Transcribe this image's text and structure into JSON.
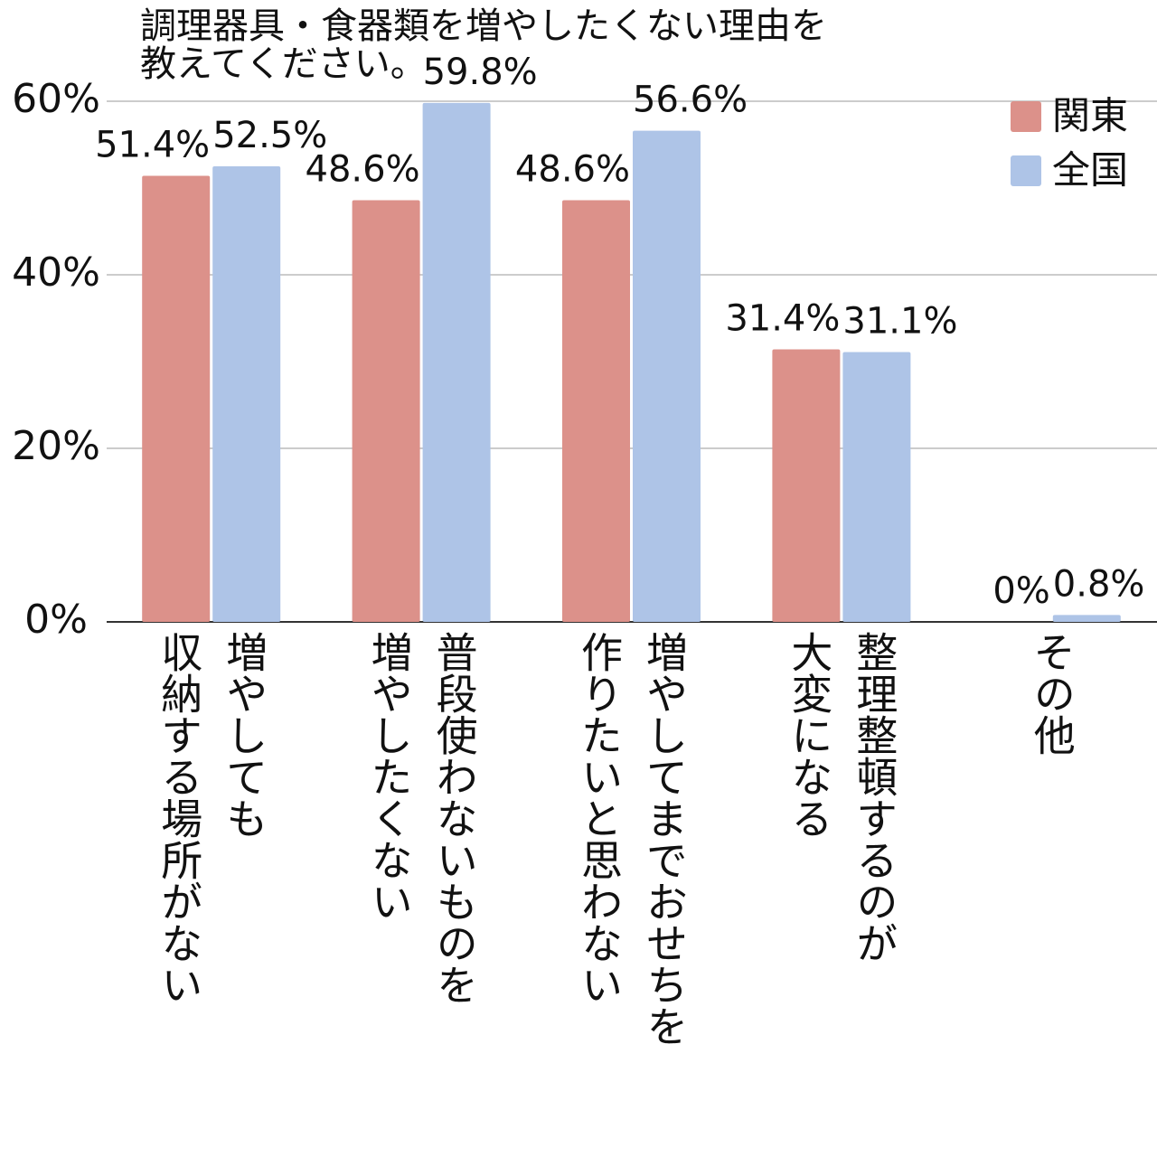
{
  "chart_data": {
    "type": "bar",
    "title": "調理器具・食器類を増やしたくない理由を\n教えてください。",
    "categories": [
      "増やしても\n収納する場所がない",
      "普段使わないものを\n増やしたくない",
      "増やしてまでおせちを\n作りたいと思わない",
      "整理整頓するのが\n大変になる",
      "その他"
    ],
    "series": [
      {
        "name": "関東",
        "color": "#dc918a",
        "values": [
          51.4,
          48.6,
          48.6,
          31.4,
          0
        ],
        "value_labels": [
          "51.4%",
          "48.6%",
          "48.6%",
          "31.4%",
          "0%"
        ]
      },
      {
        "name": "全国",
        "color": "#aec4e7",
        "values": [
          52.5,
          59.8,
          56.6,
          31.1,
          0.8
        ],
        "value_labels": [
          "52.5%",
          "59.8%",
          "56.6%",
          "31.1%",
          "0.8%"
        ]
      }
    ],
    "ylim": [
      0,
      60
    ],
    "yticks": [
      {
        "value": 0,
        "label": "0%"
      },
      {
        "value": 20,
        "label": "20%"
      },
      {
        "value": 40,
        "label": "40%"
      },
      {
        "value": 60,
        "label": "60%"
      }
    ],
    "grid": true,
    "legend": "top-right"
  }
}
